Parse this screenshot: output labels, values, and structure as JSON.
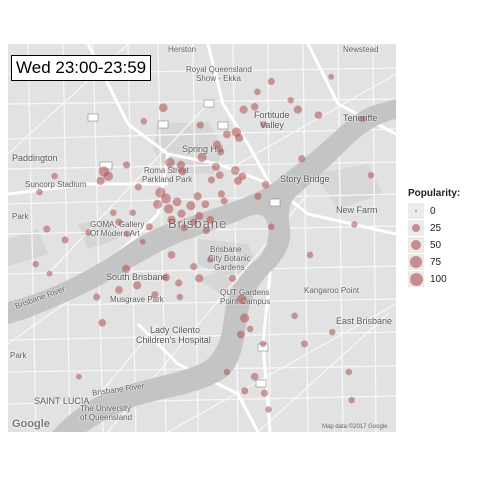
{
  "time_label": "Wed 23:00-23:59",
  "map": {
    "provider_logo": "Google",
    "attribution": "Map data ©2017 Google",
    "place_labels": [
      {
        "id": "herston",
        "text": "Herston"
      },
      {
        "id": "newstead",
        "text": "Newstead"
      },
      {
        "id": "rqsg-1",
        "text": "Royal Queensland"
      },
      {
        "id": "rqsg-2",
        "text": "Show - Ekka"
      },
      {
        "id": "fortitude-1",
        "text": "Fortitude"
      },
      {
        "id": "fortitude-2",
        "text": "Valley"
      },
      {
        "id": "teneriffe",
        "text": "Teneriffe"
      },
      {
        "id": "paddington",
        "text": "Paddington"
      },
      {
        "id": "spring-hill",
        "text": "Spring Hill"
      },
      {
        "id": "roma-1",
        "text": "Roma Street"
      },
      {
        "id": "roma-2",
        "text": "Parkland Park"
      },
      {
        "id": "story-bridge",
        "text": "Story Bridge"
      },
      {
        "id": "suncorp",
        "text": "Suncorp Stadium"
      },
      {
        "id": "new-farm",
        "text": "New Farm"
      },
      {
        "id": "park",
        "text": "Park"
      },
      {
        "id": "goma-1",
        "text": "GOMA, Gallery"
      },
      {
        "id": "goma-2",
        "text": "Of Modern Art"
      },
      {
        "id": "brisbane",
        "text": "Brisbane"
      },
      {
        "id": "botanic-1",
        "text": "Brisbane"
      },
      {
        "id": "botanic-2",
        "text": "City Botanic"
      },
      {
        "id": "botanic-3",
        "text": "Gardens"
      },
      {
        "id": "south-brisbane",
        "text": "South Brisbane"
      },
      {
        "id": "musgrave-1",
        "text": "Musgrave Park"
      },
      {
        "id": "qut-1",
        "text": "QUT Gardens"
      },
      {
        "id": "qut-2",
        "text": "Point Campus"
      },
      {
        "id": "kangaroo",
        "text": "Kangaroo Point"
      },
      {
        "id": "east-brisbane",
        "text": "East Brisbane"
      },
      {
        "id": "lady-1",
        "text": "Lady Cilento"
      },
      {
        "id": "lady-2",
        "text": "Children's Hospital"
      },
      {
        "id": "park-2",
        "text": "Park"
      },
      {
        "id": "st-lucia",
        "text": "SAINT LUCIA"
      },
      {
        "id": "uq-1",
        "text": "The University"
      },
      {
        "id": "uq-2",
        "text": "of Queensland"
      },
      {
        "id": "river-1",
        "text": "Brisbane River"
      },
      {
        "id": "river-2",
        "text": "Brisbane River"
      }
    ],
    "points": [
      {
        "lon": 153.0215,
        "lat": -27.4556,
        "popularity": 35
      },
      {
        "lon": 153.036,
        "lat": -27.456,
        "popularity": 30
      },
      {
        "lon": 153.038,
        "lat": -27.4554,
        "popularity": 25
      },
      {
        "lon": 153.018,
        "lat": -27.4585,
        "popularity": 15
      },
      {
        "lon": 153.0282,
        "lat": -27.4593,
        "popularity": 20
      },
      {
        "lon": 153.0347,
        "lat": -27.4608,
        "popularity": 45
      },
      {
        "lon": 153.0352,
        "lat": -27.462,
        "popularity": 30
      },
      {
        "lon": 153.033,
        "lat": -27.4613,
        "popularity": 25
      },
      {
        "lon": 153.0312,
        "lat": -27.4635,
        "popularity": 30
      },
      {
        "lon": 153.0319,
        "lat": -27.465,
        "popularity": 20
      },
      {
        "lon": 153.0396,
        "lat": -27.4592,
        "popularity": 15
      },
      {
        "lon": 153.04,
        "lat": -27.472,
        "popularity": 25
      },
      {
        "lon": 153.0386,
        "lat": -27.4745,
        "popularity": 20
      },
      {
        "lon": 153.0285,
        "lat": -27.4662,
        "popularity": 40
      },
      {
        "lon": 153.0227,
        "lat": -27.4673,
        "popularity": 45
      },
      {
        "lon": 153.0247,
        "lat": -27.4678,
        "popularity": 30
      },
      {
        "lon": 153.025,
        "lat": -27.4692,
        "popularity": 25
      },
      {
        "lon": 153.031,
        "lat": -27.4682,
        "popularity": 30
      },
      {
        "lon": 153.0317,
        "lat": -27.47,
        "popularity": 25
      },
      {
        "lon": 153.0302,
        "lat": -27.471,
        "popularity": 20
      },
      {
        "lon": 153.035,
        "lat": -27.4712,
        "popularity": 30
      },
      {
        "lon": 153.0345,
        "lat": -27.469,
        "popularity": 35
      },
      {
        "lon": 153.0358,
        "lat": -27.4702,
        "popularity": 25
      },
      {
        "lon": 153.0108,
        "lat": -27.4692,
        "popularity": 55
      },
      {
        "lon": 153.0116,
        "lat": -27.4702,
        "popularity": 45
      },
      {
        "lon": 153.0102,
        "lat": -27.4712,
        "popularity": 30
      },
      {
        "lon": 153.0149,
        "lat": -27.4678,
        "popularity": 20
      },
      {
        "lon": 153.0019,
        "lat": -27.4702,
        "popularity": 15
      },
      {
        "lon": 152.9992,
        "lat": -27.4736,
        "popularity": 15
      },
      {
        "lon": 153.017,
        "lat": -27.4725,
        "popularity": 20
      },
      {
        "lon": 153.021,
        "lat": -27.4737,
        "popularity": 55
      },
      {
        "lon": 153.022,
        "lat": -27.475,
        "popularity": 50
      },
      {
        "lon": 153.0205,
        "lat": -27.4762,
        "popularity": 40
      },
      {
        "lon": 153.0225,
        "lat": -27.4772,
        "popularity": 45
      },
      {
        "lon": 153.024,
        "lat": -27.4757,
        "popularity": 35
      },
      {
        "lon": 153.0248,
        "lat": -27.4782,
        "popularity": 30
      },
      {
        "lon": 153.0265,
        "lat": -27.4765,
        "popularity": 40
      },
      {
        "lon": 153.0277,
        "lat": -27.4745,
        "popularity": 30
      },
      {
        "lon": 153.0291,
        "lat": -27.4762,
        "popularity": 25
      },
      {
        "lon": 153.028,
        "lat": -27.4787,
        "popularity": 30
      },
      {
        "lon": 153.023,
        "lat": -27.4795,
        "popularity": 30
      },
      {
        "lon": 153.0253,
        "lat": -27.4812,
        "popularity": 20
      },
      {
        "lon": 153.027,
        "lat": -27.48,
        "popularity": 20
      },
      {
        "lon": 153.0293,
        "lat": -27.4818,
        "popularity": 20
      },
      {
        "lon": 153.03,
        "lat": -27.4795,
        "popularity": 25
      },
      {
        "lon": 153.019,
        "lat": -27.481,
        "popularity": 20
      },
      {
        "lon": 153.016,
        "lat": -27.478,
        "popularity": 15
      },
      {
        "lon": 153.0135,
        "lat": -27.48,
        "popularity": 20
      },
      {
        "lon": 153.0125,
        "lat": -27.478,
        "popularity": 15
      },
      {
        "lon": 153.015,
        "lat": -27.4825,
        "popularity": 15
      },
      {
        "lon": 153.032,
        "lat": -27.474,
        "popularity": 20
      },
      {
        "lon": 153.008,
        "lat": -27.4822,
        "popularity": 15
      },
      {
        "lon": 153.0005,
        "lat": -27.4815,
        "popularity": 20
      },
      {
        "lon": 153.0038,
        "lat": -27.4838,
        "popularity": 20
      },
      {
        "lon": 152.9985,
        "lat": -27.489,
        "popularity": 15
      },
      {
        "lon": 153.0178,
        "lat": -27.4842,
        "popularity": 10
      },
      {
        "lon": 153.023,
        "lat": -27.487,
        "popularity": 25
      },
      {
        "lon": 153.0148,
        "lat": -27.49,
        "popularity": 30
      },
      {
        "lon": 153.0168,
        "lat": -27.4935,
        "popularity": 30
      },
      {
        "lon": 153.0135,
        "lat": -27.4945,
        "popularity": 25
      },
      {
        "lon": 153.022,
        "lat": -27.4918,
        "popularity": 25
      },
      {
        "lon": 153.0243,
        "lat": -27.493,
        "popularity": 20
      },
      {
        "lon": 153.02,
        "lat": -27.4955,
        "popularity": 20
      },
      {
        "lon": 153.0245,
        "lat": -27.496,
        "popularity": 15
      },
      {
        "lon": 153.0095,
        "lat": -27.496,
        "popularity": 20
      },
      {
        "lon": 153.0105,
        "lat": -27.5015,
        "popularity": 25
      },
      {
        "lon": 153.028,
        "lat": -27.492,
        "popularity": 30
      },
      {
        "lon": 153.027,
        "lat": -27.4895,
        "popularity": 20
      },
      {
        "lon": 153.03,
        "lat": -27.488,
        "popularity": 15
      },
      {
        "lon": 153.034,
        "lat": -27.492,
        "popularity": 20
      },
      {
        "lon": 153.0357,
        "lat": -27.4965,
        "popularity": 45
      },
      {
        "lon": 153.0362,
        "lat": -27.5005,
        "popularity": 40
      },
      {
        "lon": 153.0355,
        "lat": -27.504,
        "popularity": 25
      },
      {
        "lon": 153.0372,
        "lat": -27.5028,
        "popularity": 15
      },
      {
        "lon": 153.0395,
        "lat": -27.506,
        "popularity": 15
      },
      {
        "lon": 153.038,
        "lat": -27.513,
        "popularity": 25
      },
      {
        "lon": 153.0398,
        "lat": -27.5165,
        "popularity": 20
      },
      {
        "lon": 153.0362,
        "lat": -27.516,
        "popularity": 20
      },
      {
        "lon": 153.033,
        "lat": -27.512,
        "popularity": 15
      },
      {
        "lon": 153.0405,
        "lat": -27.52,
        "popularity": 15
      },
      {
        "lon": 153.0452,
        "lat": -27.5,
        "popularity": 15
      },
      {
        "lon": 153.047,
        "lat": -27.506,
        "popularity": 20
      },
      {
        "lon": 153.052,
        "lat": -27.5035,
        "popularity": 15
      },
      {
        "lon": 153.055,
        "lat": -27.512,
        "popularity": 15
      },
      {
        "lon": 153.0555,
        "lat": -27.518,
        "popularity": 15
      },
      {
        "lon": 153.0325,
        "lat": -27.4755,
        "popularity": 20
      },
      {
        "lon": 153.041,
        "lat": -27.481,
        "popularity": 15
      },
      {
        "lon": 153.048,
        "lat": -27.487,
        "popularity": 15
      },
      {
        "lon": 153.0465,
        "lat": -27.4665,
        "popularity": 20
      },
      {
        "lon": 153.0495,
        "lat": -27.4572,
        "popularity": 25
      },
      {
        "lon": 153.0458,
        "lat": -27.456,
        "popularity": 30
      },
      {
        "lon": 153.0445,
        "lat": -27.454,
        "popularity": 15
      },
      {
        "lon": 153.0575,
        "lat": -27.458,
        "popularity": 15
      },
      {
        "lon": 153.041,
        "lat": -27.45,
        "popularity": 20
      },
      {
        "lon": 153.0385,
        "lat": -27.4522,
        "popularity": 15
      },
      {
        "lon": 153.0518,
        "lat": -27.449,
        "popularity": 10
      },
      {
        "lon": 153.059,
        "lat": -27.47,
        "popularity": 15
      },
      {
        "lon": 153.056,
        "lat": -27.4805,
        "popularity": 15
      },
      {
        "lon": 153.001,
        "lat": -27.491,
        "popularity": 10
      },
      {
        "lon": 153.0063,
        "lat": -27.513,
        "popularity": 10
      }
    ]
  },
  "legend": {
    "title": "Popularity:",
    "breaks": [
      0,
      25,
      50,
      75,
      100
    ],
    "point_color": "#af5050"
  }
}
